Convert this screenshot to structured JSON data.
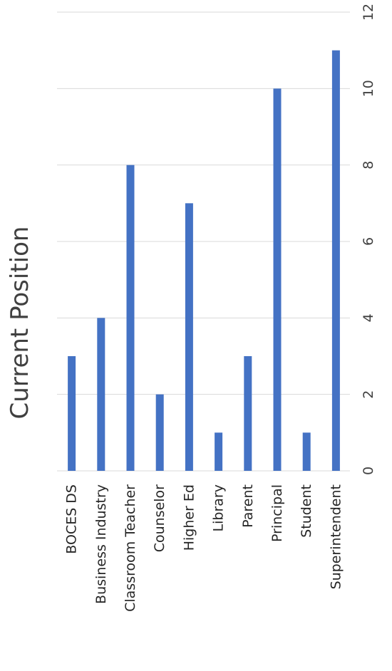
{
  "chart_data": {
    "type": "bar",
    "orientation": "vertical-bars-rotated-view",
    "title": "Current Position",
    "categories": [
      "BOCES DS",
      "Business Industry",
      "Classroom Teacher",
      "Counselor",
      "Higher Ed",
      "Library",
      "Parent",
      "Principal",
      "Student",
      "Superintendent"
    ],
    "values": [
      3,
      4,
      8,
      2,
      7,
      1,
      3,
      10,
      1,
      11
    ],
    "ylim": [
      0,
      12
    ],
    "ticks": [
      "0",
      "2",
      "4",
      "6",
      "8",
      "10",
      "12"
    ],
    "grid": true,
    "legend": "none",
    "bar_color": "#4472c4"
  }
}
